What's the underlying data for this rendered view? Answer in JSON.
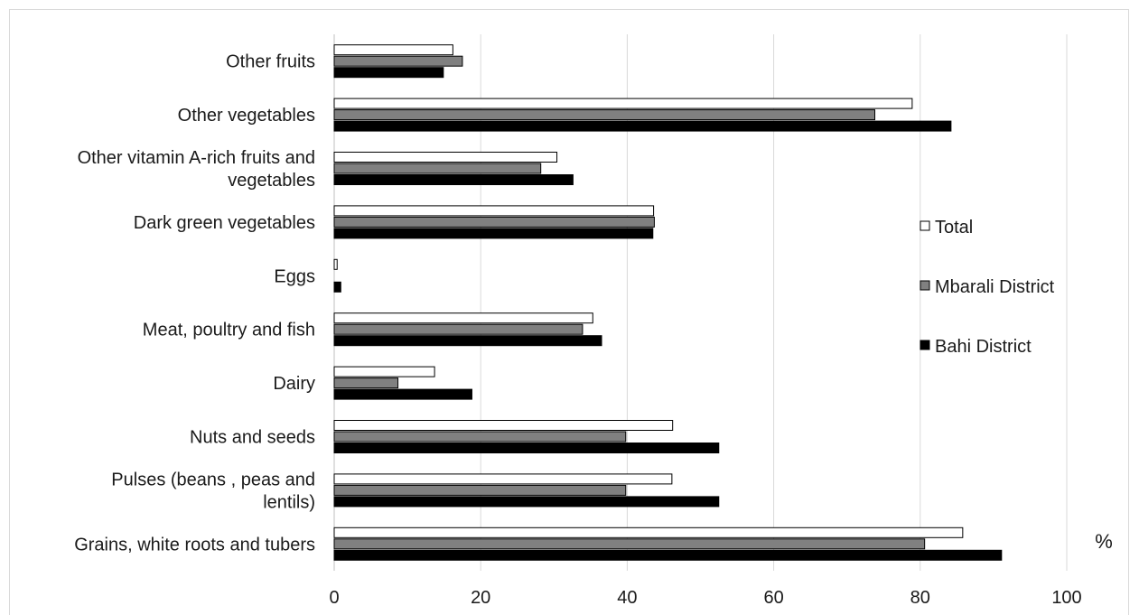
{
  "chart_data": {
    "type": "bar",
    "orientation": "horizontal",
    "categories": [
      "Other fruits",
      "Other vegetables",
      "Other vitamin A-rich fruits and vegetables",
      "Dark green vegetables",
      "Eggs",
      "Meat, poultry and fish",
      "Dairy",
      "Nuts and seeds",
      "Pulses (beans , peas and lentils)",
      "Grains, white roots and tubers"
    ],
    "category_lines": [
      [
        "Other fruits"
      ],
      [
        "Other vegetables"
      ],
      [
        "Other vitamin A-rich fruits and",
        "vegetables"
      ],
      [
        "Dark green vegetables"
      ],
      [
        "Eggs"
      ],
      [
        "Meat, poultry and fish"
      ],
      [
        "Dairy"
      ],
      [
        "Nuts and seeds"
      ],
      [
        "Pulses (beans , peas and",
        "lentils)"
      ],
      [
        "Grains, white roots and tubers"
      ]
    ],
    "series": [
      {
        "name": "Total",
        "color": "#ffffff",
        "stroke": "#000000",
        "values": [
          16.2,
          78.9,
          30.4,
          43.6,
          0.4,
          35.3,
          13.7,
          46.2,
          46.1,
          85.8
        ]
      },
      {
        "name": "Mbarali District",
        "color": "#808080",
        "stroke": "#000000",
        "values": [
          17.5,
          73.8,
          28.2,
          43.7,
          0,
          33.9,
          8.7,
          39.8,
          39.8,
          80.6
        ]
      },
      {
        "name": "Bahi District",
        "color": "#000000",
        "stroke": "#000000",
        "values": [
          14.9,
          84.2,
          32.6,
          43.5,
          0.9,
          36.5,
          18.8,
          52.5,
          52.5,
          91.1
        ]
      }
    ],
    "xlim": [
      0,
      100
    ],
    "xticks": [
      0,
      20,
      40,
      60,
      80,
      100
    ],
    "xlabel": "%",
    "grid": true,
    "legend_position": "right"
  }
}
